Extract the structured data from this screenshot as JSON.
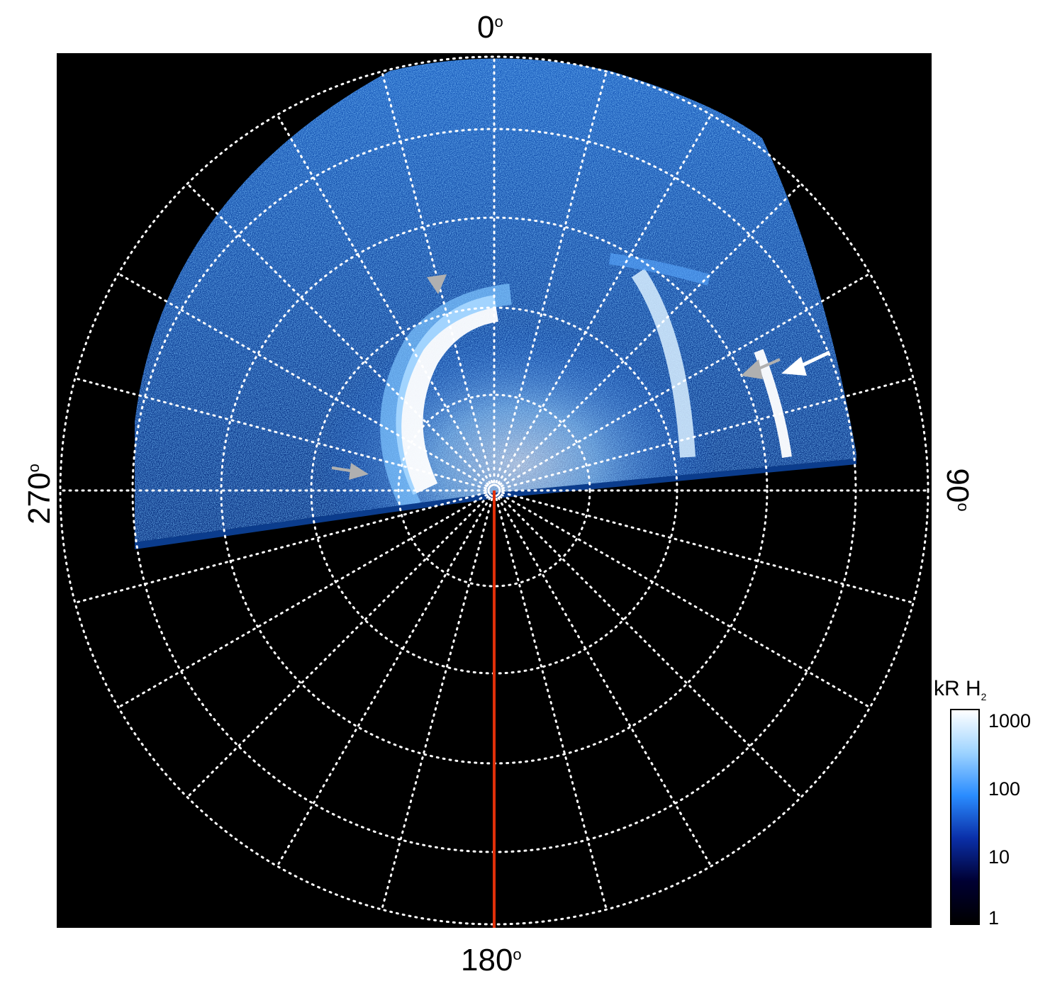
{
  "axis_labels": {
    "top": "0",
    "right": "90",
    "bottom": "180",
    "left": "270",
    "degree_symbol": "o"
  },
  "colorbar": {
    "title": "kR H",
    "title_subscript": "2",
    "ticks": [
      "1000",
      "100",
      "10",
      "1"
    ],
    "colors": [
      "#ffffff",
      "#9dd3ff",
      "#2a8cff",
      "#0a2fa8",
      "#000033",
      "#000000"
    ]
  },
  "image": {
    "description_icon": "polar-auroral-map-icon",
    "accent_line_color": "#e0300a",
    "grid_color": "#ffffff",
    "arrow_white_color": "#ffffff",
    "arrow_grey_color": "#b0b0b0"
  }
}
